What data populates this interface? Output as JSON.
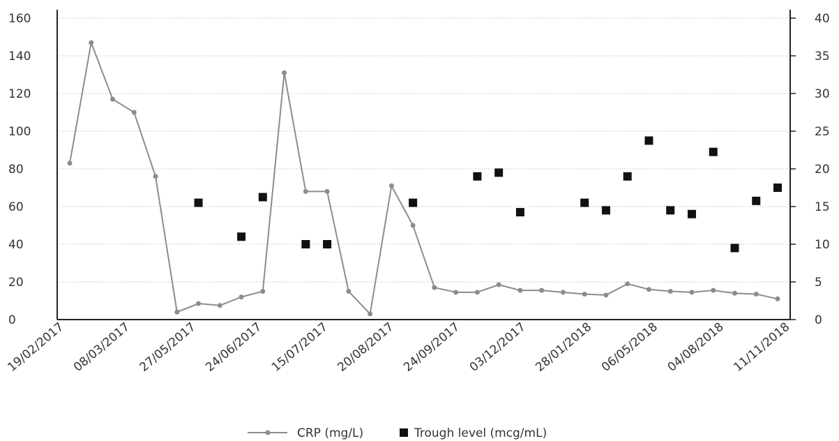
{
  "chart_data": {
    "type": "line",
    "x_tick_labels": [
      "19/02/2017",
      "08/03/2017",
      "27/05/2017",
      "24/06/2017",
      "15/07/2017",
      "20/08/2017",
      "24/09/2017",
      "03/12/2017",
      "28/01/2018",
      "06/05/2018",
      "04/08/2018",
      "11/11/2018"
    ],
    "y_left": {
      "min": 0,
      "max": 160,
      "ticks": [
        0,
        20,
        40,
        60,
        80,
        100,
        120,
        140,
        160
      ]
    },
    "y_right": {
      "min": 0,
      "max": 40,
      "ticks": [
        0,
        5,
        10,
        15,
        20,
        25,
        30,
        35,
        40
      ]
    },
    "grid": "horizontal dotted",
    "legend_position": "bottom",
    "series": [
      {
        "name": "CRP (mg/L)",
        "kind": "line-with-markers",
        "axis": "left",
        "color": "#8c8c8c",
        "values": [
          83,
          147,
          117,
          110,
          76,
          4,
          8.5,
          7.5,
          12,
          15,
          131,
          68,
          68,
          15,
          3,
          71,
          50,
          17,
          14.5,
          14.5,
          18.5,
          15.5,
          15.5,
          14.5,
          13.5,
          13,
          19,
          16,
          15,
          14.5,
          15.5,
          14,
          13.5,
          11
        ]
      },
      {
        "name": "Trough level (mcg/mL)",
        "kind": "markers",
        "axis": "right",
        "color": "#111111",
        "points": [
          {
            "i": 6,
            "y": 15.5
          },
          {
            "i": 8,
            "y": 11
          },
          {
            "i": 9,
            "y": 16.25
          },
          {
            "i": 11,
            "y": 10
          },
          {
            "i": 12,
            "y": 10
          },
          {
            "i": 16,
            "y": 15.5
          },
          {
            "i": 19,
            "y": 19
          },
          {
            "i": 20,
            "y": 19.5
          },
          {
            "i": 21,
            "y": 14.25
          },
          {
            "i": 24,
            "y": 15.5
          },
          {
            "i": 25,
            "y": 14.5
          },
          {
            "i": 26,
            "y": 19
          },
          {
            "i": 27,
            "y": 23.75
          },
          {
            "i": 28,
            "y": 14.5
          },
          {
            "i": 29,
            "y": 14
          },
          {
            "i": 30,
            "y": 22.25
          },
          {
            "i": 31,
            "y": 9.5
          },
          {
            "i": 32,
            "y": 15.75
          },
          {
            "i": 33,
            "y": 17.5
          }
        ]
      }
    ]
  }
}
